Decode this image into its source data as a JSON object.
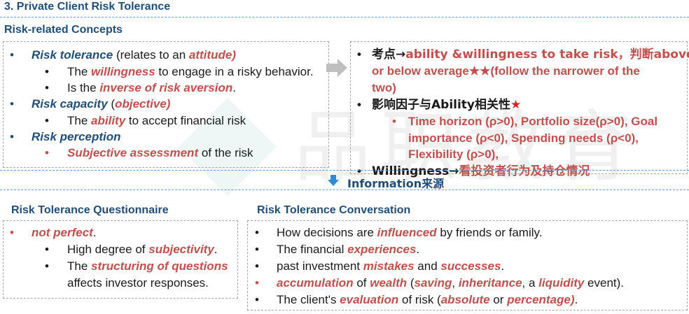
{
  "title": "3. Private Client Risk Tolerance",
  "concepts": {
    "heading": "Risk-related Concepts",
    "l1a": "Risk tolerance",
    "l1b": " (relates to an ",
    "l1c": "attitude)",
    "l2a": "The ",
    "l2b": "willingness",
    "l2c": " to engage in a risky behavior.",
    "l3a": "Is the ",
    "l3b": "inverse of risk aversion",
    "l3c": ".",
    "l4a": "Risk capacity",
    "l4b": " (",
    "l4c": "objective)",
    "l5a": "The ",
    "l5b": "ability",
    "l5c": " to accept financial risk",
    "l6a": "Risk perception",
    "l7a": "Subjective assessment",
    "l7b": " of the risk"
  },
  "right": {
    "p1a": "考点→",
    "p1b": "ability &willingness to take risk，判断above",
    "p1c": "or below average★★(follow the narrower of the",
    "p1d": "two)",
    "p2a": "影响因子与Ability相关性",
    "p2b": "★",
    "p3a": "Time horizon (ρ>0), Portfolio size(ρ>0), Goal",
    "p3b": "importance (ρ<0), Spending needs (ρ<0),",
    "p3c": "Flexibility (ρ>0),",
    "p4a": "Willingness→",
    "p4b": "看投资者行为及持仓情况"
  },
  "info": {
    "label": "Information来源"
  },
  "questionnaire": {
    "heading": "Risk Tolerance Questionnaire",
    "q1": "not perfect",
    "q1b": ".",
    "q2a": "High degree of ",
    "q2b": "subjectivity",
    "q2c": ".",
    "q3a": "The ",
    "q3b": "structuring of questions",
    "q4": "affects investor responses."
  },
  "conversation": {
    "heading": "Risk Tolerance Conversation",
    "c1a": "How decisions are ",
    "c1b": "influenced",
    "c1c": " by friends or family.",
    "c2a": "The financial ",
    "c2b": "experiences",
    "c2c": ".",
    "c3a": "past investment ",
    "c3b": "mistakes",
    "c3c": " and ",
    "c3d": "successes",
    "c3e": ".",
    "c4a": "accumulation",
    "c4b": " of ",
    "c4c": "wealth",
    "c4d": " (",
    "c4e": "saving",
    "c4f": ", ",
    "c4g": "inheritance",
    "c4h": ", a ",
    "c4i": "liquidity",
    "c4j": " event).",
    "c5a": "The client's ",
    "c5b": "evaluation",
    "c5c": " of risk (",
    "c5d": "absolute",
    "c5e": " or ",
    "c5f": "percentage)",
    "c5g": "."
  },
  "watermark": "品职教育"
}
